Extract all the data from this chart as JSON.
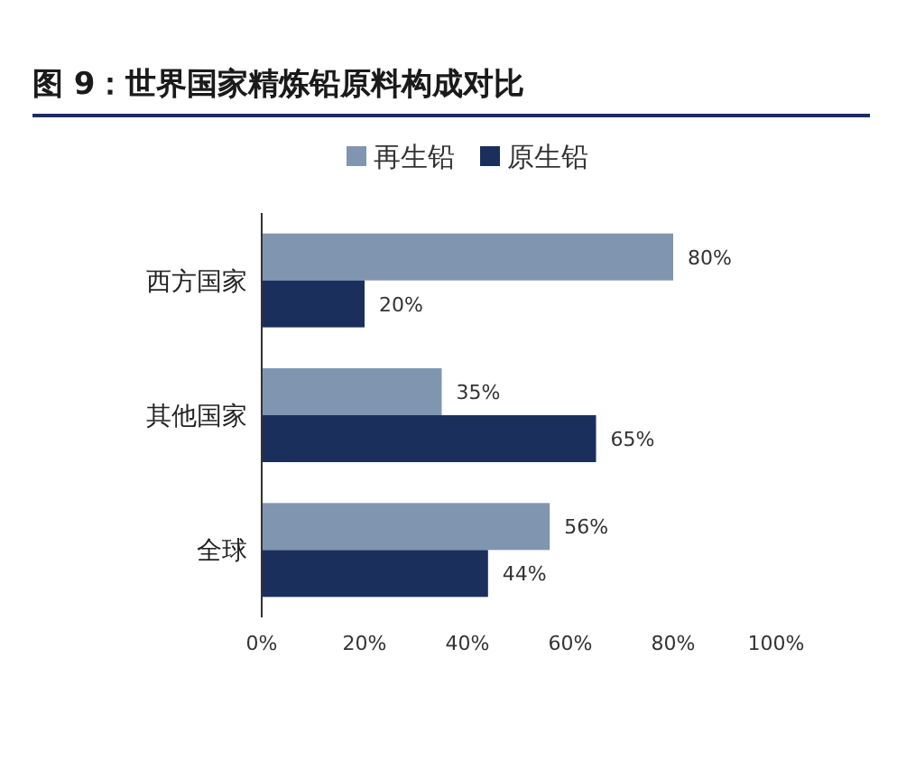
{
  "chart_data": {
    "type": "bar",
    "orientation": "horizontal",
    "title": "图 9：世界国家精炼铅原料构成对比",
    "categories": [
      "西方国家",
      "其他国家",
      "全球"
    ],
    "series": [
      {
        "name": "再生铅",
        "color": "#8096b0",
        "values": [
          80,
          35,
          56
        ],
        "value_labels": [
          "80%",
          "35%",
          "56%"
        ]
      },
      {
        "name": "原生铅",
        "color": "#1b2f5c",
        "values": [
          20,
          65,
          44
        ],
        "value_labels": [
          "20%",
          "65%",
          "44%"
        ]
      }
    ],
    "xlim": [
      0,
      100
    ],
    "xticks": [
      {
        "value": 0,
        "label": "0%"
      },
      {
        "value": 20,
        "label": "20%"
      },
      {
        "value": 40,
        "label": "40%"
      },
      {
        "value": 60,
        "label": "60%"
      },
      {
        "value": 80,
        "label": "80%"
      },
      {
        "value": 100,
        "label": "100%"
      }
    ],
    "legend": "top",
    "grid": false
  }
}
